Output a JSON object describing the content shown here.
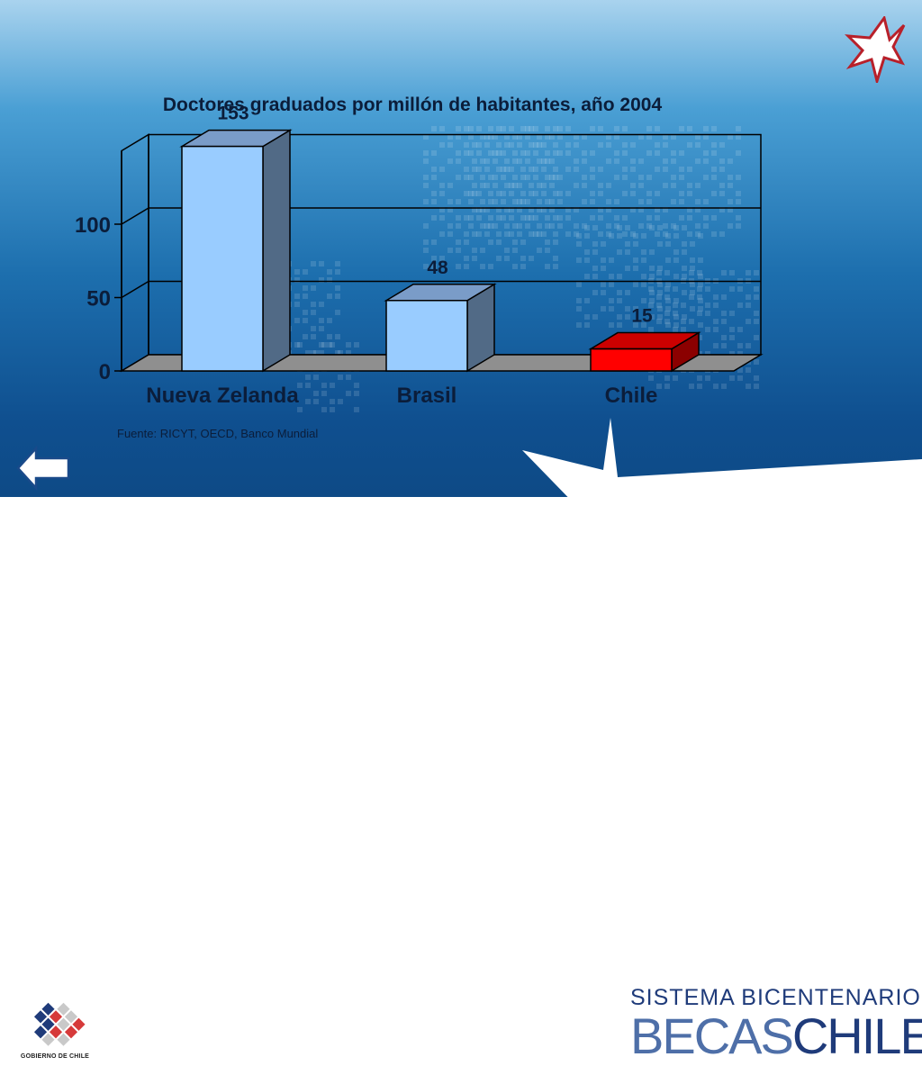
{
  "chart_data": {
    "type": "bar",
    "title": "Doctores graduados por millón de habitantes, año 2004",
    "categories": [
      "Nueva Zelanda",
      "Brasil",
      "Chile"
    ],
    "values": [
      153,
      48,
      15
    ],
    "value_labels": [
      "153",
      "48",
      "15"
    ],
    "bar_colors": [
      "#99ccff",
      "#99ccff",
      "#ff0000"
    ],
    "y_ticks": [
      "0",
      "50",
      "100"
    ],
    "y_tick_values": [
      0,
      50,
      100
    ],
    "ylim": [
      0,
      150
    ],
    "grid": true,
    "style": "3d"
  },
  "source_text": "Fuente: RICYT, OECD, Banco Mundial",
  "footer": {
    "government_label": "GOBIERNO DE CHILE",
    "brand_line1": "SISTEMA BICENTENARIO",
    "brand_line2_a": "BECAS",
    "brand_line2_b": "CHILE"
  },
  "icons": {
    "back": "left-arrow-icon",
    "star_logo": "star-icon"
  },
  "colors": {
    "background_top": "#a9d3ee",
    "background_bottom": "#0e4a86",
    "brand_dark": "#1f3b7a",
    "brand_light": "#4e6fa8",
    "chile_red": "#ff0000"
  }
}
